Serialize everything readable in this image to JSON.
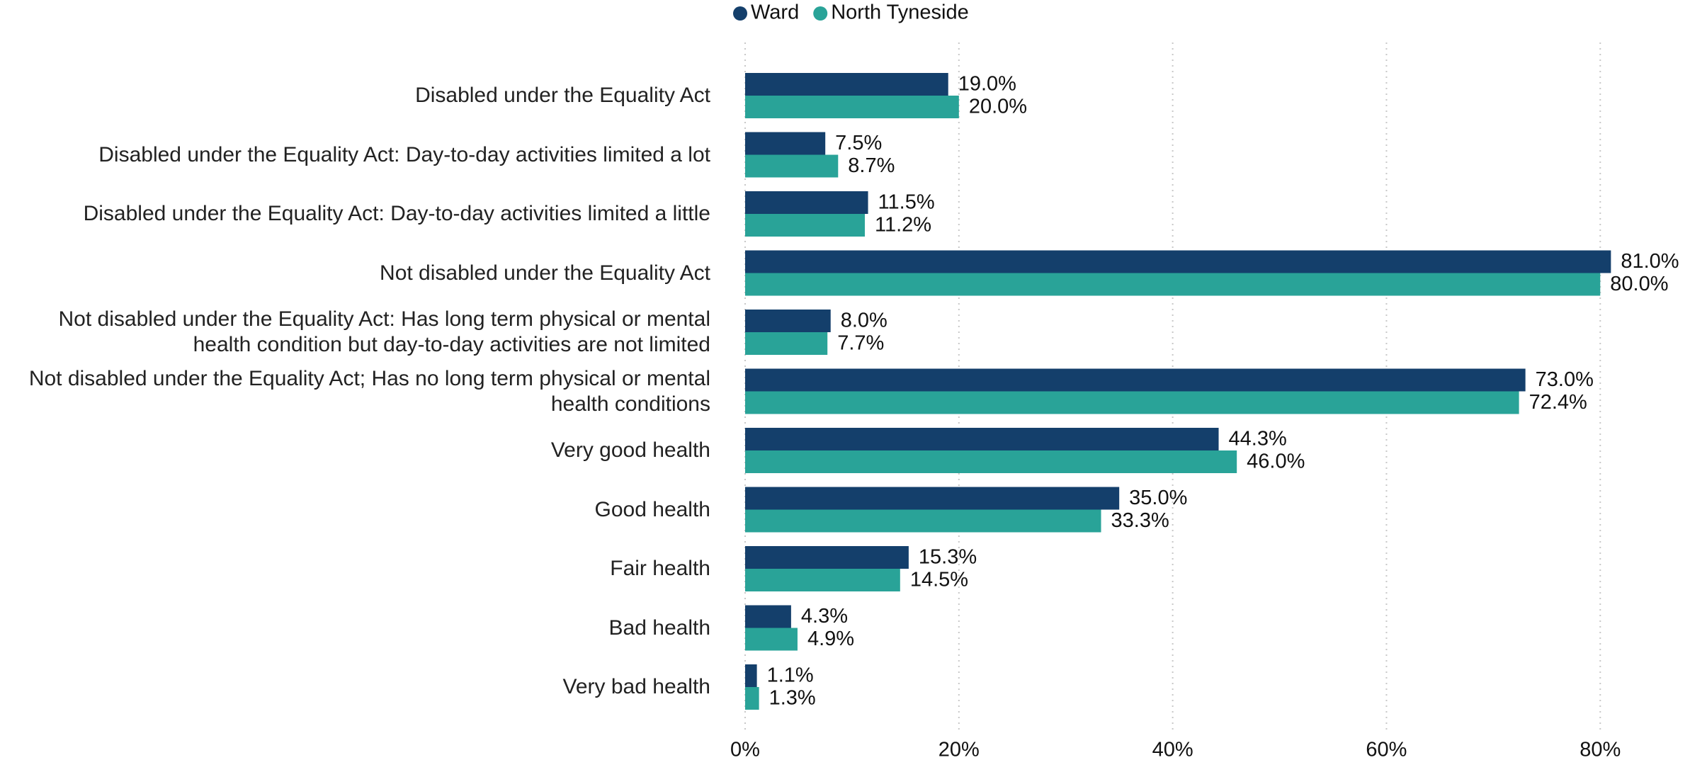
{
  "chart_data": {
    "type": "hbar",
    "categories": [
      "Disabled under the Equality Act",
      "Disabled under the Equality Act: Day-to-day activities limited a lot",
      "Disabled under the Equality Act: Day-to-day activities limited a little",
      "Not disabled under the Equality Act",
      "Not disabled under the Equality Act: Has long term physical or mental health condition but day-to-day activities are not limited",
      "Not disabled under the Equality Act; Has no long term physical or mental health conditions",
      "Very good health",
      "Good health",
      "Fair health",
      "Bad health",
      "Very bad health"
    ],
    "series": [
      {
        "name": "Ward",
        "color": "#143f6b",
        "values": [
          19.0,
          7.5,
          11.5,
          81.0,
          8.0,
          73.0,
          44.3,
          35.0,
          15.3,
          4.3,
          1.1
        ],
        "value_labels": [
          "19.0%",
          "7.5%",
          "11.5%",
          "81.0%",
          "8.0%",
          "73.0%",
          "44.3%",
          "35.0%",
          "15.3%",
          "4.3%",
          "1.1%"
        ]
      },
      {
        "name": "North Tyneside",
        "color": "#29a398",
        "values": [
          20.0,
          8.7,
          11.2,
          80.0,
          7.7,
          72.4,
          46.0,
          33.3,
          14.5,
          4.9,
          1.3
        ],
        "value_labels": [
          "20.0%",
          "8.7%",
          "11.2%",
          "80.0%",
          "7.7%",
          "72.4%",
          "46.0%",
          "33.3%",
          "14.5%",
          "4.9%",
          "1.3%"
        ]
      }
    ],
    "xlim": [
      0,
      88
    ],
    "xticks": [
      {
        "value": 0,
        "label": "0%"
      },
      {
        "value": 20,
        "label": "20%"
      },
      {
        "value": 40,
        "label": "40%"
      },
      {
        "value": 60,
        "label": "60%"
      },
      {
        "value": 80,
        "label": "80%"
      }
    ],
    "grid": true,
    "legend": "top"
  }
}
